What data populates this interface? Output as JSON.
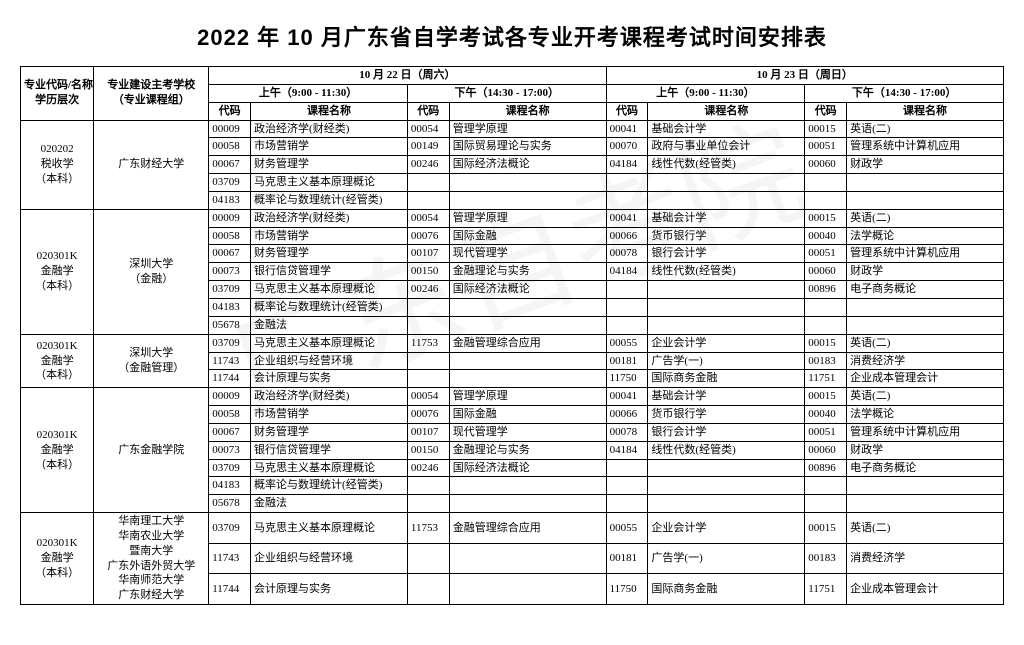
{
  "title": "2022 年 10 月广东省自学考试各专业开考课程考试时间安排表",
  "watermark": "广东自考院",
  "header": {
    "major": "专业代码/名称\n学历层次",
    "school": "专业建设主考学校\n（专业课程组）",
    "day1": "10 月 22 日（周六）",
    "day2": "10 月 23 日（周日）",
    "am": "上午（9:00 - 11:30）",
    "pm": "下午（14:30 - 17:00）",
    "code": "代码",
    "course": "课程名称"
  },
  "groups": [
    {
      "major": "020202\n税收学\n（本科）",
      "school": "广东财经大学",
      "rows": [
        {
          "a": [
            "00009",
            "政治经济学(财经类)"
          ],
          "b": [
            "00054",
            "管理学原理"
          ],
          "c": [
            "00041",
            "基础会计学"
          ],
          "d": [
            "00015",
            "英语(二)"
          ]
        },
        {
          "a": [
            "00058",
            "市场营销学"
          ],
          "b": [
            "00149",
            "国际贸易理论与实务"
          ],
          "c": [
            "00070",
            "政府与事业单位会计"
          ],
          "d": [
            "00051",
            "管理系统中计算机应用"
          ]
        },
        {
          "a": [
            "00067",
            "财务管理学"
          ],
          "b": [
            "00246",
            "国际经济法概论"
          ],
          "c": [
            "04184",
            "线性代数(经管类)"
          ],
          "d": [
            "00060",
            "财政学"
          ]
        },
        {
          "a": [
            "03709",
            "马克思主义基本原理概论"
          ],
          "b": [
            "",
            ""
          ],
          "c": [
            "",
            ""
          ],
          "d": [
            "",
            ""
          ]
        },
        {
          "a": [
            "04183",
            "概率论与数理统计(经管类)"
          ],
          "b": [
            "",
            ""
          ],
          "c": [
            "",
            ""
          ],
          "d": [
            "",
            ""
          ]
        }
      ]
    },
    {
      "major": "020301K\n金融学\n（本科）",
      "school": "深圳大学\n（金融）",
      "rows": [
        {
          "a": [
            "00009",
            "政治经济学(财经类)"
          ],
          "b": [
            "00054",
            "管理学原理"
          ],
          "c": [
            "00041",
            "基础会计学"
          ],
          "d": [
            "00015",
            "英语(二)"
          ]
        },
        {
          "a": [
            "00058",
            "市场营销学"
          ],
          "b": [
            "00076",
            "国际金融"
          ],
          "c": [
            "00066",
            "货币银行学"
          ],
          "d": [
            "00040",
            "法学概论"
          ]
        },
        {
          "a": [
            "00067",
            "财务管理学"
          ],
          "b": [
            "00107",
            "现代管理学"
          ],
          "c": [
            "00078",
            "银行会计学"
          ],
          "d": [
            "00051",
            "管理系统中计算机应用"
          ]
        },
        {
          "a": [
            "00073",
            "银行信贷管理学"
          ],
          "b": [
            "00150",
            "金融理论与实务"
          ],
          "c": [
            "04184",
            "线性代数(经管类)"
          ],
          "d": [
            "00060",
            "财政学"
          ]
        },
        {
          "a": [
            "03709",
            "马克思主义基本原理概论"
          ],
          "b": [
            "00246",
            "国际经济法概论"
          ],
          "c": [
            "",
            ""
          ],
          "d": [
            "00896",
            "电子商务概论"
          ]
        },
        {
          "a": [
            "04183",
            "概率论与数理统计(经管类)"
          ],
          "b": [
            "",
            ""
          ],
          "c": [
            "",
            ""
          ],
          "d": [
            "",
            ""
          ]
        },
        {
          "a": [
            "05678",
            "金融法"
          ],
          "b": [
            "",
            ""
          ],
          "c": [
            "",
            ""
          ],
          "d": [
            "",
            ""
          ]
        }
      ]
    },
    {
      "major": "020301K\n金融学\n（本科）",
      "school": "深圳大学\n（金融管理）",
      "rows": [
        {
          "a": [
            "03709",
            "马克思主义基本原理概论"
          ],
          "b": [
            "11753",
            "金融管理综合应用"
          ],
          "c": [
            "00055",
            "企业会计学"
          ],
          "d": [
            "00015",
            "英语(二)"
          ]
        },
        {
          "a": [
            "11743",
            "企业组织与经营环境"
          ],
          "b": [
            "",
            ""
          ],
          "c": [
            "00181",
            "广告学(一)"
          ],
          "d": [
            "00183",
            "消费经济学"
          ]
        },
        {
          "a": [
            "11744",
            "会计原理与实务"
          ],
          "b": [
            "",
            ""
          ],
          "c": [
            "11750",
            "国际商务金融"
          ],
          "d": [
            "11751",
            "企业成本管理会计"
          ]
        }
      ]
    },
    {
      "major": "020301K\n金融学\n（本科）",
      "school": "广东金融学院",
      "rows": [
        {
          "a": [
            "00009",
            "政治经济学(财经类)"
          ],
          "b": [
            "00054",
            "管理学原理"
          ],
          "c": [
            "00041",
            "基础会计学"
          ],
          "d": [
            "00015",
            "英语(二)"
          ]
        },
        {
          "a": [
            "00058",
            "市场营销学"
          ],
          "b": [
            "00076",
            "国际金融"
          ],
          "c": [
            "00066",
            "货币银行学"
          ],
          "d": [
            "00040",
            "法学概论"
          ]
        },
        {
          "a": [
            "00067",
            "财务管理学"
          ],
          "b": [
            "00107",
            "现代管理学"
          ],
          "c": [
            "00078",
            "银行会计学"
          ],
          "d": [
            "00051",
            "管理系统中计算机应用"
          ]
        },
        {
          "a": [
            "00073",
            "银行信贷管理学"
          ],
          "b": [
            "00150",
            "金融理论与实务"
          ],
          "c": [
            "04184",
            "线性代数(经管类)"
          ],
          "d": [
            "00060",
            "财政学"
          ]
        },
        {
          "a": [
            "03709",
            "马克思主义基本原理概论"
          ],
          "b": [
            "00246",
            "国际经济法概论"
          ],
          "c": [
            "",
            ""
          ],
          "d": [
            "00896",
            "电子商务概论"
          ]
        },
        {
          "a": [
            "04183",
            "概率论与数理统计(经管类)"
          ],
          "b": [
            "",
            ""
          ],
          "c": [
            "",
            ""
          ],
          "d": [
            "",
            ""
          ]
        },
        {
          "a": [
            "05678",
            "金融法"
          ],
          "b": [
            "",
            ""
          ],
          "c": [
            "",
            ""
          ],
          "d": [
            "",
            ""
          ]
        }
      ]
    },
    {
      "major": "020301K\n金融学\n（本科）",
      "school": "华南理工大学\n华南农业大学\n暨南大学\n广东外语外贸大学\n华南师范大学\n广东财经大学",
      "rows": [
        {
          "a": [
            "03709",
            "马克思主义基本原理概论"
          ],
          "b": [
            "11753",
            "金融管理综合应用"
          ],
          "c": [
            "00055",
            "企业会计学"
          ],
          "d": [
            "00015",
            "英语(二)"
          ]
        },
        {
          "a": [
            "11743",
            "企业组织与经营环境"
          ],
          "b": [
            "",
            ""
          ],
          "c": [
            "00181",
            "广告学(一)"
          ],
          "d": [
            "00183",
            "消费经济学"
          ]
        },
        {
          "a": [
            "11744",
            "会计原理与实务"
          ],
          "b": [
            "",
            ""
          ],
          "c": [
            "11750",
            "国际商务金融"
          ],
          "d": [
            "11751",
            "企业成本管理会计"
          ]
        }
      ]
    }
  ]
}
